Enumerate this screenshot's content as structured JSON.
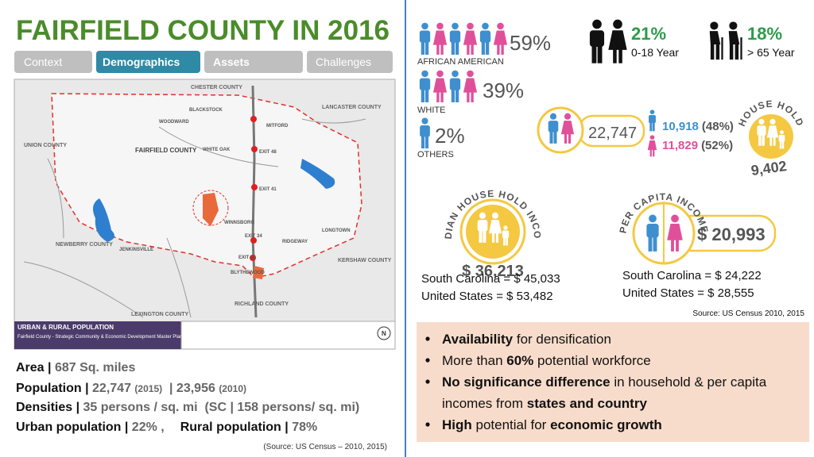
{
  "header": {
    "title": "FAIRFIELD COUNTY IN 2016",
    "tabs": [
      "Context",
      "Demographics",
      "Assets",
      "Challenges"
    ]
  },
  "map": {
    "labels": [
      "CHESTER COUNTY",
      "LANCASTER COUNTY",
      "UNION COUNTY",
      "FAIRFIELD COUNTY",
      "NEWBERRY COUNTY",
      "KERSHAW COUNTY",
      "RICHLAND COUNTY",
      "LEXINGTON COUNTY",
      "BLACKSTOCK",
      "WOODWARD",
      "MITFORD",
      "WHITE OAK",
      "WINNSBORO",
      "JENKINSVILLE",
      "RIDGEWAY",
      "LONGTOWN",
      "BLYTHEWOOD",
      "EXIT 48",
      "EXIT 41",
      "EXIT 34",
      "EXIT 32"
    ],
    "caption": {
      "title": "URBAN & RURAL POPULATION",
      "text": "Fairfield County - Strategic Community & Economic Development Master Plan (SCEDMP) - South Carolina"
    }
  },
  "stats": {
    "lines": [
      [
        "Area | ",
        "687 Sq. miles"
      ],
      [
        "Population | ",
        "22,747 ",
        "(2015)",
        "  | 23,956 ",
        "(2010)"
      ],
      [
        "Densities | ",
        "35 persons / sq. mi  (SC | 158 persons/ sq. mi)"
      ],
      [
        "Urban population | ",
        "22% ,",
        "Rural population | ",
        "78%"
      ]
    ],
    "source": "(Source: US Census – 2010, 2015)"
  },
  "race": [
    {
      "percent": "59%",
      "label": "AFRICAN AMERICAN"
    },
    {
      "percent": "39%",
      "label": "WHITE"
    },
    {
      "percent": "2%",
      "label": "OTHERS"
    }
  ],
  "age": [
    {
      "percent": "21%",
      "label": "0-18 Year"
    },
    {
      "percent": "18%",
      "label": "> 65 Year"
    }
  ],
  "population": {
    "total": "22,747",
    "male": "10,918",
    "male_share": "(48%)",
    "female": "11,829",
    "female_share": "(52%)"
  },
  "household": {
    "label": "HOUSE HOLD",
    "count": "9,402"
  },
  "median_income": {
    "label": "MEDIAN HOUSE HOLD INCOME",
    "value": "$ 36,213",
    "comparisons": [
      "South Carolina = $ 45,033",
      "United States = $ 53,482"
    ]
  },
  "per_capita_income": {
    "label": "PER CAPITA INCOME",
    "value": "$ 20,993",
    "comparisons": [
      "South Carolina = $ 24,222",
      "United States = $ 28,555"
    ]
  },
  "source": "Source: US Census 2010, 2015",
  "bullets": [
    {
      "lines": [
        [
          {
            "text": "Availability",
            "bold": true
          },
          {
            "text": " for densification",
            "bold": false
          }
        ]
      ]
    },
    {
      "lines": [
        [
          {
            "text": "More than ",
            "bold": false
          },
          {
            "text": "60%",
            "bold": true
          },
          {
            "text": " potential workforce",
            "bold": false
          }
        ]
      ]
    },
    {
      "lines": [
        [
          {
            "text": "No significance difference",
            "bold": true
          },
          {
            "text": " in household & per capita",
            "bold": false
          }
        ],
        [
          {
            "text": "incomes from ",
            "bold": false
          },
          {
            "text": "states and country",
            "bold": true
          }
        ]
      ]
    },
    {
      "lines": [
        [
          {
            "text": "High",
            "bold": true
          },
          {
            "text": " potential for ",
            "bold": false
          },
          {
            "text": "economic growth",
            "bold": true
          }
        ]
      ]
    }
  ]
}
